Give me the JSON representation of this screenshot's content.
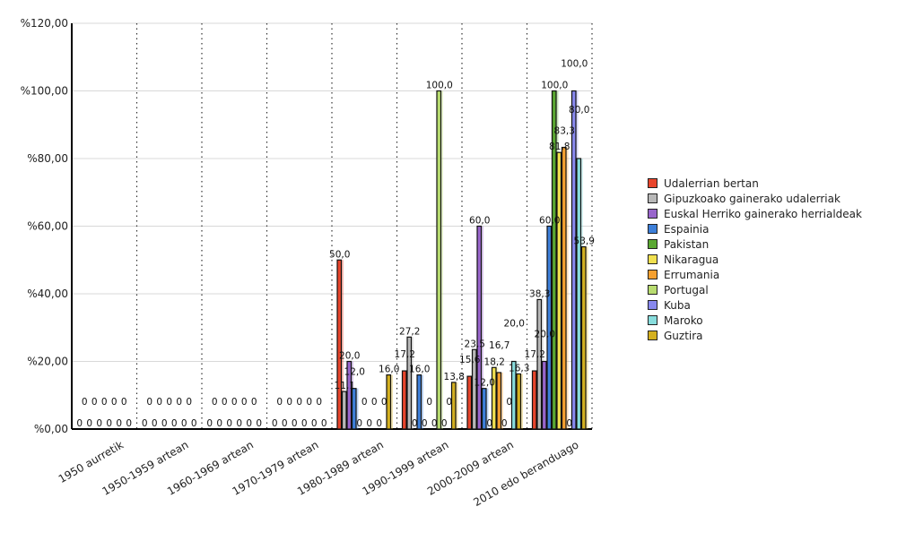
{
  "chart_data": {
    "type": "bar",
    "ylim": [
      0,
      120
    ],
    "yticks": [
      "%0,00",
      "%20,00",
      "%40,00",
      "%60,00",
      "%80,00",
      "%100,00",
      "%120,00"
    ],
    "ytick_values": [
      0,
      20,
      40,
      60,
      80,
      100,
      120
    ],
    "grid": true,
    "legend_placement": "right",
    "categories": [
      "1950 aurretik",
      "1950-1959 artean",
      "1960-1969 artean",
      "1970-1979 artean",
      "1980-1989 artean",
      "1990-1999 artean",
      "2000-2009 artean",
      "2010 edo beranduago"
    ],
    "series": [
      {
        "name": "Udalerrian bertan",
        "color": "#e8452c",
        "values": [
          0,
          0,
          0,
          0,
          50.0,
          17.2,
          15.6,
          17.2
        ]
      },
      {
        "name": "Gipuzkoako gainerako udalerriak",
        "color": "#b8b8b8",
        "values": [
          0,
          0,
          0,
          0,
          11.1,
          27.2,
          23.5,
          38.3
        ]
      },
      {
        "name": "Euskal Herriko gainerako herrialdeak",
        "color": "#9966cc",
        "values": [
          0,
          0,
          0,
          0,
          20.0,
          0,
          60.0,
          20.0
        ]
      },
      {
        "name": "Espainia",
        "color": "#3d7fd9",
        "values": [
          0,
          0,
          0,
          0,
          12.0,
          16.0,
          12.0,
          60.0
        ]
      },
      {
        "name": "Pakistan",
        "color": "#5aa832",
        "values": [
          0,
          0,
          0,
          0,
          0,
          0,
          0,
          100.0
        ]
      },
      {
        "name": "Nikaragua",
        "color": "#f0e050",
        "values": [
          0,
          0,
          0,
          0,
          0,
          0,
          18.2,
          81.8
        ]
      },
      {
        "name": "Errumania",
        "color": "#f5a030",
        "values": [
          0,
          0,
          0,
          0,
          0,
          0,
          16.7,
          83.3
        ]
      },
      {
        "name": "Portugal",
        "color": "#b8dc70",
        "values": [
          0,
          0,
          0,
          0,
          0,
          100.0,
          0,
          0
        ]
      },
      {
        "name": "Kuba",
        "color": "#8888ee",
        "values": [
          0,
          0,
          0,
          0,
          0,
          0,
          0,
          100.0
        ]
      },
      {
        "name": "Maroko",
        "color": "#88dddd",
        "values": [
          0,
          0,
          0,
          0,
          0,
          0,
          20.0,
          80.0
        ]
      },
      {
        "name": "Guztira",
        "color": "#d4b020",
        "values": [
          0,
          0,
          0,
          0,
          16.0,
          13.8,
          16.3,
          53.9
        ]
      }
    ]
  }
}
